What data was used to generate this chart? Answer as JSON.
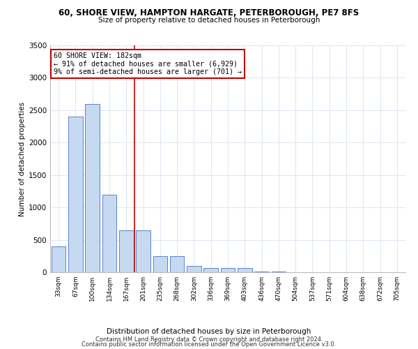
{
  "title": "60, SHORE VIEW, HAMPTON HARGATE, PETERBOROUGH, PE7 8FS",
  "subtitle": "Size of property relative to detached houses in Peterborough",
  "xlabel": "Distribution of detached houses by size in Peterborough",
  "ylabel": "Number of detached properties",
  "categories": [
    "33sqm",
    "67sqm",
    "100sqm",
    "134sqm",
    "167sqm",
    "201sqm",
    "235sqm",
    "268sqm",
    "302sqm",
    "336sqm",
    "369sqm",
    "403sqm",
    "436sqm",
    "470sqm",
    "504sqm",
    "537sqm",
    "571sqm",
    "604sqm",
    "638sqm",
    "672sqm",
    "705sqm"
  ],
  "values": [
    400,
    2400,
    2600,
    1200,
    650,
    650,
    250,
    250,
    100,
    70,
    60,
    60,
    15,
    10,
    5,
    3,
    2,
    2,
    1,
    1,
    1
  ],
  "bar_color": "#c5d9f1",
  "bar_edge_color": "#4472c4",
  "marker_line_color": "#c00000",
  "annotation_text": "60 SHORE VIEW: 182sqm\n← 91% of detached houses are smaller (6,929)\n9% of semi-detached houses are larger (701) →",
  "annotation_box_color": "#ffffff",
  "annotation_box_edge_color": "#c00000",
  "ylim": [
    0,
    3500
  ],
  "yticks": [
    0,
    500,
    1000,
    1500,
    2000,
    2500,
    3000,
    3500
  ],
  "footnote1": "Contains HM Land Registry data © Crown copyright and database right 2024.",
  "footnote2": "Contains public sector information licensed under the Open Government Licence v3.0.",
  "background_color": "#ffffff",
  "grid_color": "#dce6f1"
}
